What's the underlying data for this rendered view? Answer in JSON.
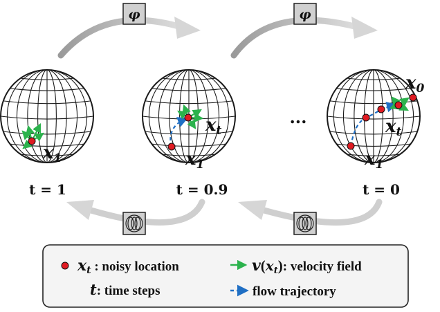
{
  "operators": {
    "top_symbol": "φ",
    "bottom_icon": "spiral-coil-icon"
  },
  "ellipsis": "...",
  "spheres": [
    {
      "time_label": "t = 1",
      "point_labels": [
        {
          "main": "x",
          "sub": "1"
        }
      ]
    },
    {
      "time_label": "t = 0.9",
      "point_labels": [
        {
          "main": "x",
          "sub": "t"
        },
        {
          "main": "x",
          "sub": "1"
        }
      ]
    },
    {
      "time_label": "t = 0",
      "point_labels": [
        {
          "main": "x",
          "sub": "0"
        },
        {
          "main": "x",
          "sub": "t"
        },
        {
          "main": "x",
          "sub": "1"
        }
      ]
    }
  ],
  "legend": {
    "noisy": {
      "symbol_main": "x",
      "symbol_sub": "t",
      "text": " : noisy location"
    },
    "velocity": {
      "symbol": "v",
      "arg_main": "x",
      "arg_sub": "t",
      "text": ": velocity field"
    },
    "time": {
      "symbol": "t",
      "text": ": time steps"
    },
    "flow": {
      "text": "flow trajectory"
    }
  },
  "colors": {
    "point_fill": "#e01b22",
    "velocity": "#2bb24c",
    "flow": "#1f6fc4",
    "arrow_gray": "#c4c4c4",
    "box_fill": "#d0d0d0",
    "legend_bg": "#f4f4f4"
  }
}
